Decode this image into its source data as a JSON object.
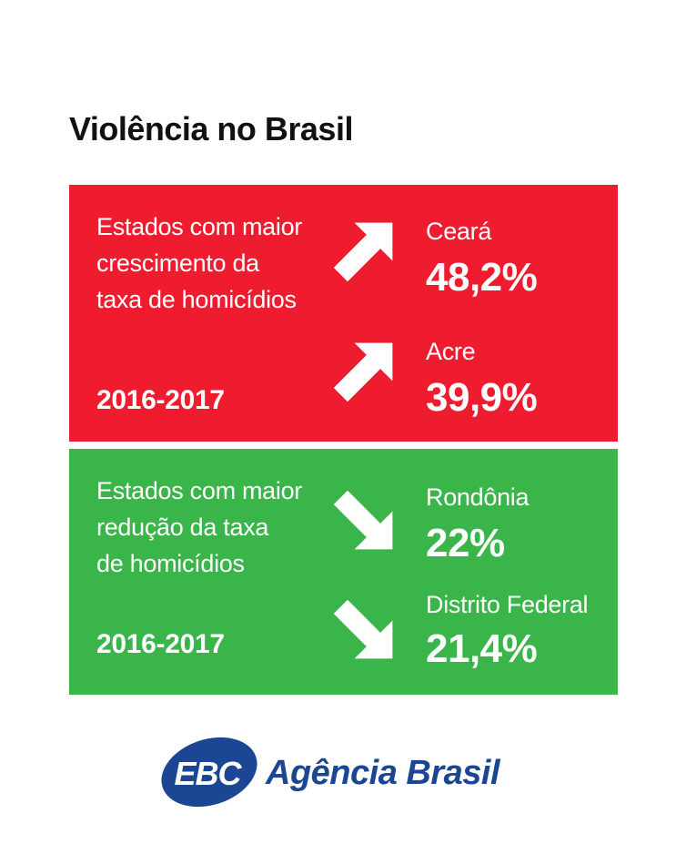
{
  "title": "Violência no Brasil",
  "colors": {
    "increase_panel": "#ee1c2e",
    "decrease_panel": "#39b54a",
    "text": "#ffffff",
    "logo_blue": "#1b4694"
  },
  "increase": {
    "description_lines": [
      "Estados com maior",
      "crescimento da",
      "taxa de homicídios"
    ],
    "period": "2016-2017",
    "icon": "arrow-up-right-icon",
    "items": [
      {
        "state": "Ceará",
        "value": "48,2%"
      },
      {
        "state": "Acre",
        "value": "39,9%"
      }
    ]
  },
  "decrease": {
    "description_lines": [
      "Estados com maior",
      "redução da taxa",
      "de homicídios"
    ],
    "period": "2016-2017",
    "icon": "arrow-down-right-icon",
    "items": [
      {
        "state": "Rondônia",
        "value": "22%"
      },
      {
        "state": "Distrito Federal",
        "value": "21,4%"
      }
    ]
  },
  "logo": {
    "badge_text": "EBC",
    "name": "Agência Brasil"
  }
}
